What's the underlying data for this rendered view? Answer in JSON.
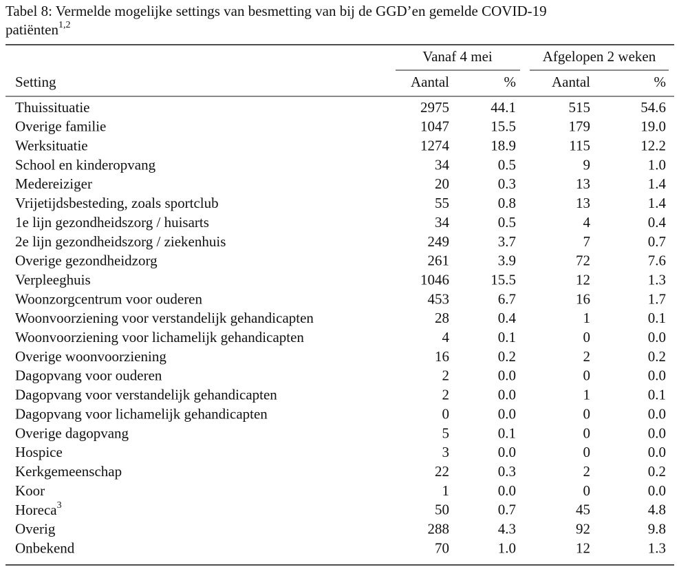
{
  "caption": {
    "line1": "Tabel 8: Vermelde mogelijke settings van besmetting van bij de GGD’en gemelde COVID-19",
    "line2": "patiënten",
    "line2_sup": "1,2"
  },
  "table": {
    "group_headers": [
      "Vanaf 4 mei",
      "Afgelopen 2 weken"
    ],
    "headers": [
      "Setting",
      "Aantal",
      "%",
      "Aantal",
      "%"
    ],
    "rows": [
      [
        "Thuissituatie",
        "2975",
        "44.1",
        "515",
        "54.6"
      ],
      [
        "Overige familie",
        "1047",
        "15.5",
        "179",
        "19.0"
      ],
      [
        "Werksituatie",
        "1274",
        "18.9",
        "115",
        "12.2"
      ],
      [
        "School en kinderopvang",
        "34",
        "0.5",
        "9",
        "1.0"
      ],
      [
        "Medereiziger",
        "20",
        "0.3",
        "13",
        "1.4"
      ],
      [
        "Vrijetijdsbesteding, zoals sportclub",
        "55",
        "0.8",
        "13",
        "1.4"
      ],
      [
        "1e lijn gezondheidszorg / huisarts",
        "34",
        "0.5",
        "4",
        "0.4"
      ],
      [
        "2e lijn gezondheidszorg / ziekenhuis",
        "249",
        "3.7",
        "7",
        "0.7"
      ],
      [
        "Overige gezondheidzorg",
        "261",
        "3.9",
        "72",
        "7.6"
      ],
      [
        "Verpleeghuis",
        "1046",
        "15.5",
        "12",
        "1.3"
      ],
      [
        "Woonzorgcentrum voor ouderen",
        "453",
        "6.7",
        "16",
        "1.7"
      ],
      [
        "Woonvoorziening voor verstandelijk gehandicapten",
        "28",
        "0.4",
        "1",
        "0.1"
      ],
      [
        "Woonvoorziening voor lichamelijk gehandicapten",
        "4",
        "0.1",
        "0",
        "0.0"
      ],
      [
        "Overige woonvoorziening",
        "16",
        "0.2",
        "2",
        "0.2"
      ],
      [
        "Dagopvang voor ouderen",
        "2",
        "0.0",
        "0",
        "0.0"
      ],
      [
        "Dagopvang voor verstandelijk gehandicapten",
        "2",
        "0.0",
        "1",
        "0.1"
      ],
      [
        "Dagopvang voor lichamelijk gehandicapten",
        "0",
        "0.0",
        "0",
        "0.0"
      ],
      [
        "Overige dagopvang",
        "5",
        "0.1",
        "0",
        "0.0"
      ],
      [
        "Hospice",
        "3",
        "0.0",
        "0",
        "0.0"
      ],
      [
        "Kerkgemeenschap",
        "22",
        "0.3",
        "2",
        "0.2"
      ],
      [
        "Koor",
        "1",
        "0.0",
        "0",
        "0.0"
      ],
      [
        "Horeca",
        "50",
        "0.7",
        "45",
        "4.8"
      ],
      [
        "Overig",
        "288",
        "4.3",
        "92",
        "9.8"
      ],
      [
        "Onbekend",
        "70",
        "1.0",
        "12",
        "1.3"
      ]
    ],
    "row_label_sups": {
      "21": "3"
    }
  }
}
